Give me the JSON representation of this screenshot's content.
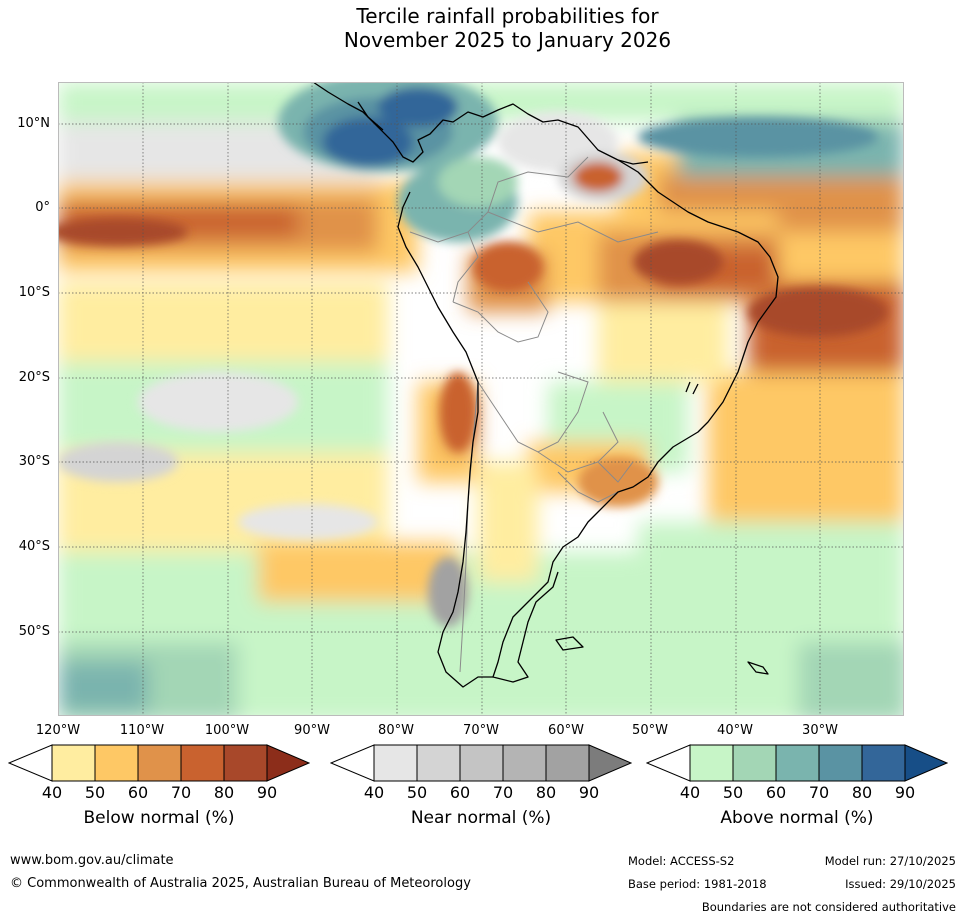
{
  "title": {
    "line1": "Tercile rainfall probabilities for",
    "line2": "November 2025 to January 2026"
  },
  "map": {
    "latitude_labels": [
      "10°N",
      "0°",
      "10°S",
      "20°S",
      "30°S",
      "40°S",
      "50°S"
    ],
    "longitude_labels": [
      "120°W",
      "110°W",
      "100°W",
      "90°W",
      "80°W",
      "70°W",
      "60°W",
      "50°W",
      "40°W",
      "30°W"
    ]
  },
  "colorbars": [
    {
      "title": "Below normal (%)",
      "ticks": [
        "40",
        "50",
        "60",
        "70",
        "80",
        "90"
      ],
      "colors": [
        "#ffffff",
        "#ffeda0",
        "#fec865",
        "#e0924a",
        "#c9622f",
        "#a8482a",
        "#8c2d1a"
      ]
    },
    {
      "title": "Near normal (%)",
      "ticks": [
        "40",
        "50",
        "60",
        "70",
        "80",
        "90"
      ],
      "colors": [
        "#ffffff",
        "#e6e6e6",
        "#d4d4d4",
        "#c4c4c4",
        "#b4b4b4",
        "#a2a2a2",
        "#7c7c7c"
      ]
    },
    {
      "title": "Above normal (%)",
      "ticks": [
        "40",
        "50",
        "60",
        "70",
        "80",
        "90"
      ],
      "colors": [
        "#ffffff",
        "#c7f5c7",
        "#a3d6b5",
        "#7ab4ae",
        "#5a93a3",
        "#336699",
        "#174e87"
      ]
    }
  ],
  "footer": {
    "website": "www.bom.gov.au/climate",
    "copyright": "© Commonwealth of Australia 2025, Australian Bureau of Meteorology",
    "model": "Model: ACCESS-S2",
    "base_period": "Base period: 1981-2018",
    "model_run": "Model run: 27/10/2025",
    "issued": "Issued: 29/10/2025",
    "disclaimer": "Boundaries are not considered authoritative"
  }
}
